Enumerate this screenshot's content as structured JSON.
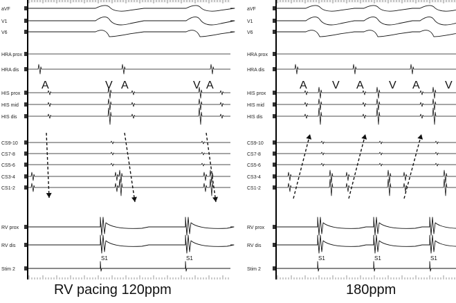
{
  "panels": [
    {
      "caption": "RV pacing 120ppm",
      "header_text": "",
      "channels": [
        "aVF",
        "V1",
        "V6",
        "HRA prox",
        "HRA dis",
        "HIS prox",
        "HIS mid",
        "HIS dis",
        "CS9-10",
        "CS7-8",
        "CS5-6",
        "CS3-4",
        "CS1-2",
        "RV prox",
        "RV dis",
        "Stim 2"
      ],
      "his_annotations": [
        "A",
        "V",
        "A",
        "V",
        "A"
      ],
      "stim_label": "S1",
      "stim_count": 2,
      "arrow_direction": "down"
    },
    {
      "caption": "180ppm",
      "header_text": "",
      "channels": [
        "aVF",
        "V1",
        "V6",
        "HRA prox",
        "HRA dis",
        "HIS prox",
        "HIS mid",
        "HIS dis",
        "CS9-10",
        "CS7-8",
        "CS5-6",
        "CS3-4",
        "CS1-2",
        "RV prox",
        "RV dis",
        "Stim 2"
      ],
      "his_annotations": [
        "A",
        "V",
        "A",
        "V",
        "A",
        "V"
      ],
      "stim_label": "S1",
      "stim_count": 3,
      "arrow_direction": "up"
    }
  ],
  "colors": {
    "trace": "#111111",
    "arrow": "#111111",
    "header": "#cc3333"
  }
}
